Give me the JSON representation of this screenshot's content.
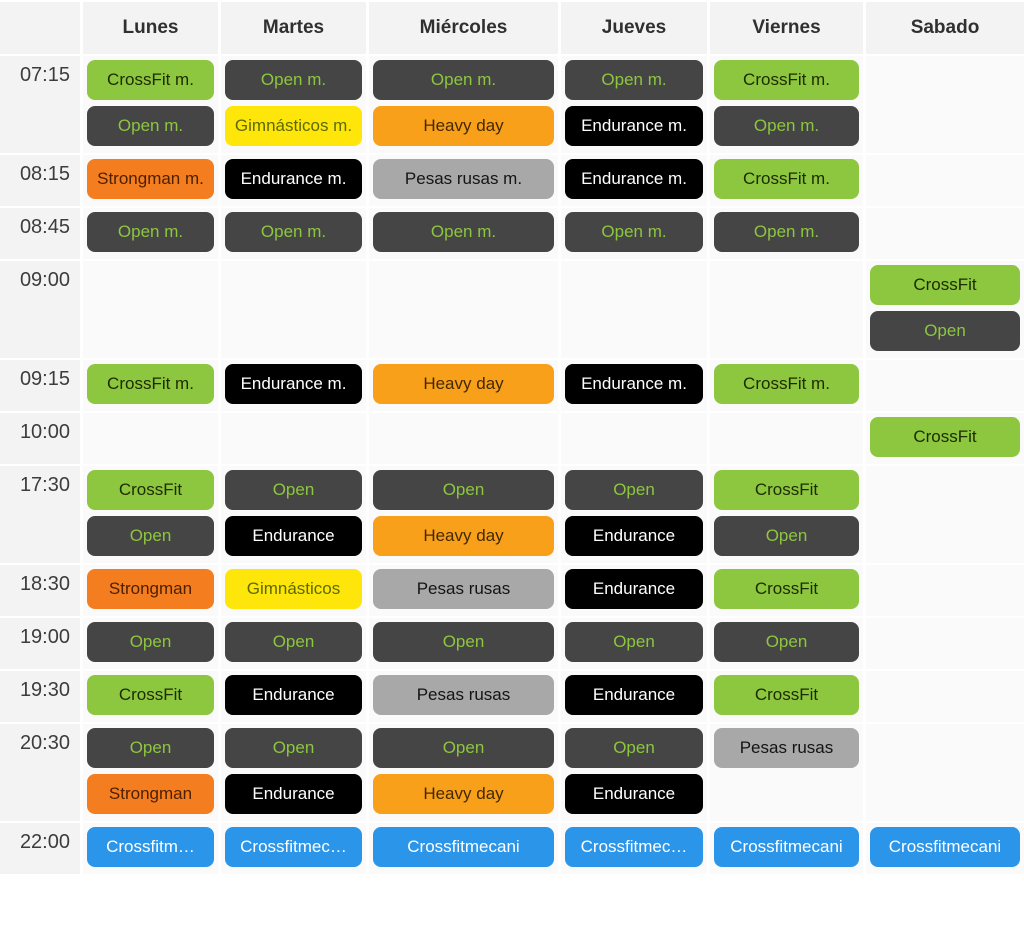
{
  "schedule": {
    "days": [
      "Lunes",
      "Martes",
      "Miércoles",
      "Jueves",
      "Viernes",
      "Sabado"
    ],
    "event_colors": {
      "crossfit": {
        "bg": "#8dc63f",
        "text": "#1d2b00"
      },
      "open": {
        "bg": "#454545",
        "text": "#8dc63f"
      },
      "endurance": {
        "bg": "#000000",
        "text": "#ffffff"
      },
      "heavy": {
        "bg": "#f9a01b",
        "text": "#442800"
      },
      "strongman": {
        "bg": "#f47d20",
        "text": "#4d2000"
      },
      "gimnasticos": {
        "bg": "#ffe60a",
        "text": "#5c6a00"
      },
      "pesas": {
        "bg": "#a8a8a8",
        "text": "#141414"
      },
      "mecani": {
        "bg": "#2b95e9",
        "text": "#ffffff"
      }
    },
    "background_colors": {
      "header": "#f3f3f3",
      "time_column": "#f3f3f3",
      "cell": "#fafafa",
      "gap": "#ffffff"
    },
    "rows": [
      {
        "time": "07:15",
        "cells": [
          [
            {
              "label": "CrossFit m.",
              "type": "crossfit"
            },
            {
              "label": "Open m.",
              "type": "open"
            }
          ],
          [
            {
              "label": "Open m.",
              "type": "open"
            },
            {
              "label": "Gimnásticos m.",
              "type": "gimnasticos"
            }
          ],
          [
            {
              "label": "Open m.",
              "type": "open"
            },
            {
              "label": "Heavy day",
              "type": "heavy"
            }
          ],
          [
            {
              "label": "Open m.",
              "type": "open"
            },
            {
              "label": "Endurance m.",
              "type": "endurance"
            }
          ],
          [
            {
              "label": "CrossFit m.",
              "type": "crossfit"
            },
            {
              "label": "Open m.",
              "type": "open"
            }
          ],
          []
        ]
      },
      {
        "time": "08:15",
        "cells": [
          [
            {
              "label": "Strongman m.",
              "type": "strongman"
            }
          ],
          [
            {
              "label": "Endurance m.",
              "type": "endurance"
            }
          ],
          [
            {
              "label": "Pesas rusas m.",
              "type": "pesas"
            }
          ],
          [
            {
              "label": "Endurance m.",
              "type": "endurance"
            }
          ],
          [
            {
              "label": "CrossFit m.",
              "type": "crossfit"
            }
          ],
          []
        ]
      },
      {
        "time": "08:45",
        "cells": [
          [
            {
              "label": "Open m.",
              "type": "open"
            }
          ],
          [
            {
              "label": "Open m.",
              "type": "open"
            }
          ],
          [
            {
              "label": "Open m.",
              "type": "open"
            }
          ],
          [
            {
              "label": "Open m.",
              "type": "open"
            }
          ],
          [
            {
              "label": "Open m.",
              "type": "open"
            }
          ],
          []
        ]
      },
      {
        "time": "09:00",
        "cells": [
          [],
          [],
          [],
          [],
          [],
          [
            {
              "label": "CrossFit",
              "type": "crossfit"
            },
            {
              "label": "Open",
              "type": "open"
            }
          ]
        ]
      },
      {
        "time": "09:15",
        "cells": [
          [
            {
              "label": "CrossFit m.",
              "type": "crossfit"
            }
          ],
          [
            {
              "label": "Endurance m.",
              "type": "endurance"
            }
          ],
          [
            {
              "label": "Heavy day",
              "type": "heavy"
            }
          ],
          [
            {
              "label": "Endurance m.",
              "type": "endurance"
            }
          ],
          [
            {
              "label": "CrossFit m.",
              "type": "crossfit"
            }
          ],
          []
        ]
      },
      {
        "time": "10:00",
        "cells": [
          [],
          [],
          [],
          [],
          [],
          [
            {
              "label": "CrossFit",
              "type": "crossfit"
            }
          ]
        ]
      },
      {
        "time": "17:30",
        "cells": [
          [
            {
              "label": "CrossFit",
              "type": "crossfit"
            },
            {
              "label": "Open",
              "type": "open"
            }
          ],
          [
            {
              "label": "Open",
              "type": "open"
            },
            {
              "label": "Endurance",
              "type": "endurance"
            }
          ],
          [
            {
              "label": "Open",
              "type": "open"
            },
            {
              "label": "Heavy day",
              "type": "heavy"
            }
          ],
          [
            {
              "label": "Open",
              "type": "open"
            },
            {
              "label": "Endurance",
              "type": "endurance"
            }
          ],
          [
            {
              "label": "CrossFit",
              "type": "crossfit"
            },
            {
              "label": "Open",
              "type": "open"
            }
          ],
          []
        ]
      },
      {
        "time": "18:30",
        "cells": [
          [
            {
              "label": "Strongman",
              "type": "strongman"
            }
          ],
          [
            {
              "label": "Gimnásticos",
              "type": "gimnasticos"
            }
          ],
          [
            {
              "label": "Pesas rusas",
              "type": "pesas"
            }
          ],
          [
            {
              "label": "Endurance",
              "type": "endurance"
            }
          ],
          [
            {
              "label": "CrossFit",
              "type": "crossfit"
            }
          ],
          []
        ]
      },
      {
        "time": "19:00",
        "cells": [
          [
            {
              "label": "Open",
              "type": "open"
            }
          ],
          [
            {
              "label": "Open",
              "type": "open"
            }
          ],
          [
            {
              "label": "Open",
              "type": "open"
            }
          ],
          [
            {
              "label": "Open",
              "type": "open"
            }
          ],
          [
            {
              "label": "Open",
              "type": "open"
            }
          ],
          []
        ]
      },
      {
        "time": "19:30",
        "cells": [
          [
            {
              "label": "CrossFit",
              "type": "crossfit"
            }
          ],
          [
            {
              "label": "Endurance",
              "type": "endurance"
            }
          ],
          [
            {
              "label": "Pesas rusas",
              "type": "pesas"
            }
          ],
          [
            {
              "label": "Endurance",
              "type": "endurance"
            }
          ],
          [
            {
              "label": "CrossFit",
              "type": "crossfit"
            }
          ],
          []
        ]
      },
      {
        "time": "20:30",
        "cells": [
          [
            {
              "label": "Open",
              "type": "open"
            },
            {
              "label": "Strongman",
              "type": "strongman"
            }
          ],
          [
            {
              "label": "Open",
              "type": "open"
            },
            {
              "label": "Endurance",
              "type": "endurance"
            }
          ],
          [
            {
              "label": "Open",
              "type": "open"
            },
            {
              "label": "Heavy day",
              "type": "heavy"
            }
          ],
          [
            {
              "label": "Open",
              "type": "open"
            },
            {
              "label": "Endurance",
              "type": "endurance"
            }
          ],
          [
            {
              "label": "Pesas rusas",
              "type": "pesas"
            }
          ],
          []
        ]
      },
      {
        "time": "22:00",
        "cells": [
          [
            {
              "label": "Crossfitm…",
              "type": "mecani"
            }
          ],
          [
            {
              "label": "Crossfitmec…",
              "type": "mecani"
            }
          ],
          [
            {
              "label": "Crossfitmecani",
              "type": "mecani"
            }
          ],
          [
            {
              "label": "Crossfitmec…",
              "type": "mecani"
            }
          ],
          [
            {
              "label": "Crossfitmecani",
              "type": "mecani"
            }
          ],
          [
            {
              "label": "Crossfitmecani",
              "type": "mecani"
            }
          ]
        ]
      }
    ]
  }
}
